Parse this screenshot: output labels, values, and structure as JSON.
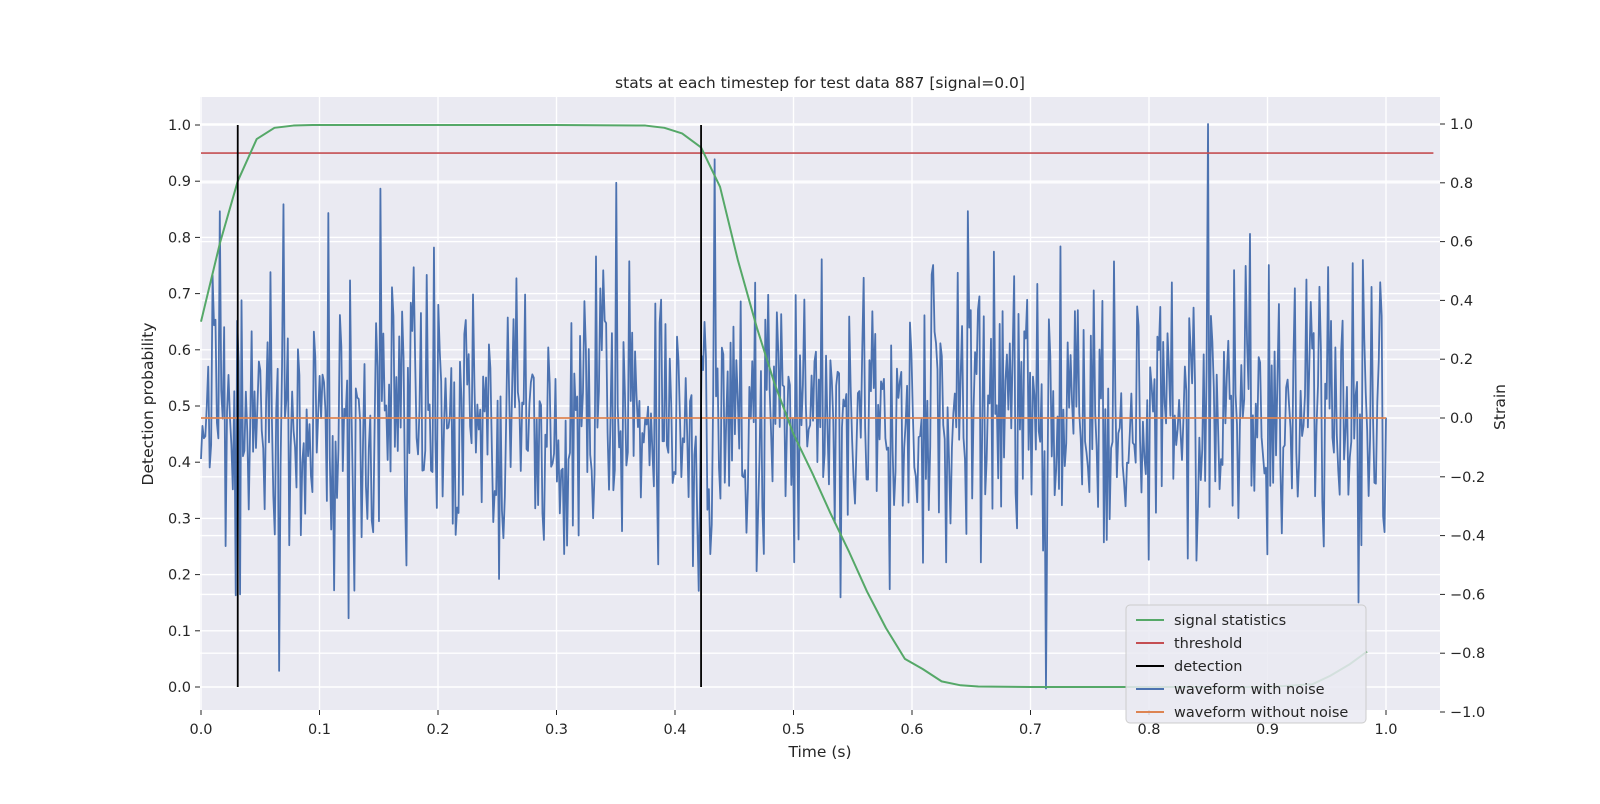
{
  "chart_data": {
    "type": "line",
    "title": "stats at each timestep for test data 887 [signal=0.0]",
    "xlabel": "Time (s)",
    "ylabel_left": "Detection probability",
    "ylabel_right": "Strain",
    "xlim": [
      0.0,
      1.05
    ],
    "ylim_left": [
      -0.045,
      1.045
    ],
    "ylim_right": [
      -1.0,
      1.0
    ],
    "x_ticks": [
      "0.0",
      "0.1",
      "0.2",
      "0.3",
      "0.4",
      "0.5",
      "0.6",
      "0.7",
      "0.8",
      "0.9",
      "1.0"
    ],
    "y_left_ticks": [
      "0.0",
      "0.1",
      "0.2",
      "0.3",
      "0.4",
      "0.5",
      "0.6",
      "0.7",
      "0.8",
      "0.9",
      "1.0"
    ],
    "y_right_ticks": [
      "−1.0",
      "−0.8",
      "−0.6",
      "−0.4",
      "−0.2",
      "0.0",
      "0.2",
      "0.4",
      "0.6",
      "0.8",
      "1.0"
    ],
    "grid": true,
    "background": "#eaeaf2",
    "legend_position": "lower right",
    "series": [
      {
        "name": "signal statistics",
        "axis": "left",
        "color": "#55a868",
        "x": [
          0.0,
          0.016,
          0.031,
          0.047,
          0.062,
          0.078,
          0.094,
          0.109,
          0.125,
          0.2,
          0.3,
          0.375,
          0.391,
          0.406,
          0.422,
          0.438,
          0.453,
          0.469,
          0.484,
          0.5,
          0.516,
          0.531,
          0.547,
          0.562,
          0.578,
          0.594,
          0.609,
          0.625,
          0.641,
          0.656,
          0.7,
          0.8,
          0.9,
          0.938,
          0.953,
          0.969,
          0.984
        ],
        "y": [
          0.65,
          0.79,
          0.9,
          0.975,
          0.995,
          0.999,
          1.0,
          1.0,
          1.0,
          1.0,
          1.0,
          0.999,
          0.995,
          0.985,
          0.96,
          0.89,
          0.76,
          0.64,
          0.54,
          0.45,
          0.38,
          0.31,
          0.24,
          0.17,
          0.105,
          0.05,
          0.032,
          0.01,
          0.003,
          0.001,
          0.0,
          0.0,
          0.0,
          0.005,
          0.02,
          0.04,
          0.063
        ]
      },
      {
        "name": "threshold",
        "axis": "left",
        "color": "#c44e52",
        "x": [
          0.0,
          1.04
        ],
        "y": [
          0.95,
          0.95
        ]
      },
      {
        "name": "waveform with noise",
        "axis": "right",
        "color": "#4c72b0",
        "x_range": [
          0.0,
          1.0
        ],
        "n_points": 820,
        "noise_std": 0.24,
        "approx_range": [
          -0.93,
          1.0
        ],
        "notable_peaks": [
          {
            "x": 0.85,
            "y": 1.0
          },
          {
            "x": 0.713,
            "y": -0.92
          },
          {
            "x": 0.433,
            "y": 0.88
          },
          {
            "x": 0.35,
            "y": 0.8
          },
          {
            "x": 0.152,
            "y": 0.78
          },
          {
            "x": 0.066,
            "y": -0.86
          },
          {
            "x": 0.033,
            "y": -0.6
          }
        ]
      },
      {
        "name": "waveform without noise",
        "axis": "right",
        "color": "#dd8452",
        "x": [
          0.0,
          1.0
        ],
        "y": [
          0.0,
          0.0
        ]
      }
    ],
    "detections": {
      "name": "detection",
      "color": "#000000",
      "x": [
        0.031,
        0.422
      ],
      "y_range": [
        0.0,
        1.0
      ]
    },
    "legend": [
      {
        "label": "signal statistics",
        "color": "#55a868"
      },
      {
        "label": "threshold",
        "color": "#c44e52"
      },
      {
        "label": "detection",
        "color": "#000000"
      },
      {
        "label": "waveform with noise",
        "color": "#4c72b0"
      },
      {
        "label": "waveform without noise",
        "color": "#dd8452"
      }
    ]
  }
}
